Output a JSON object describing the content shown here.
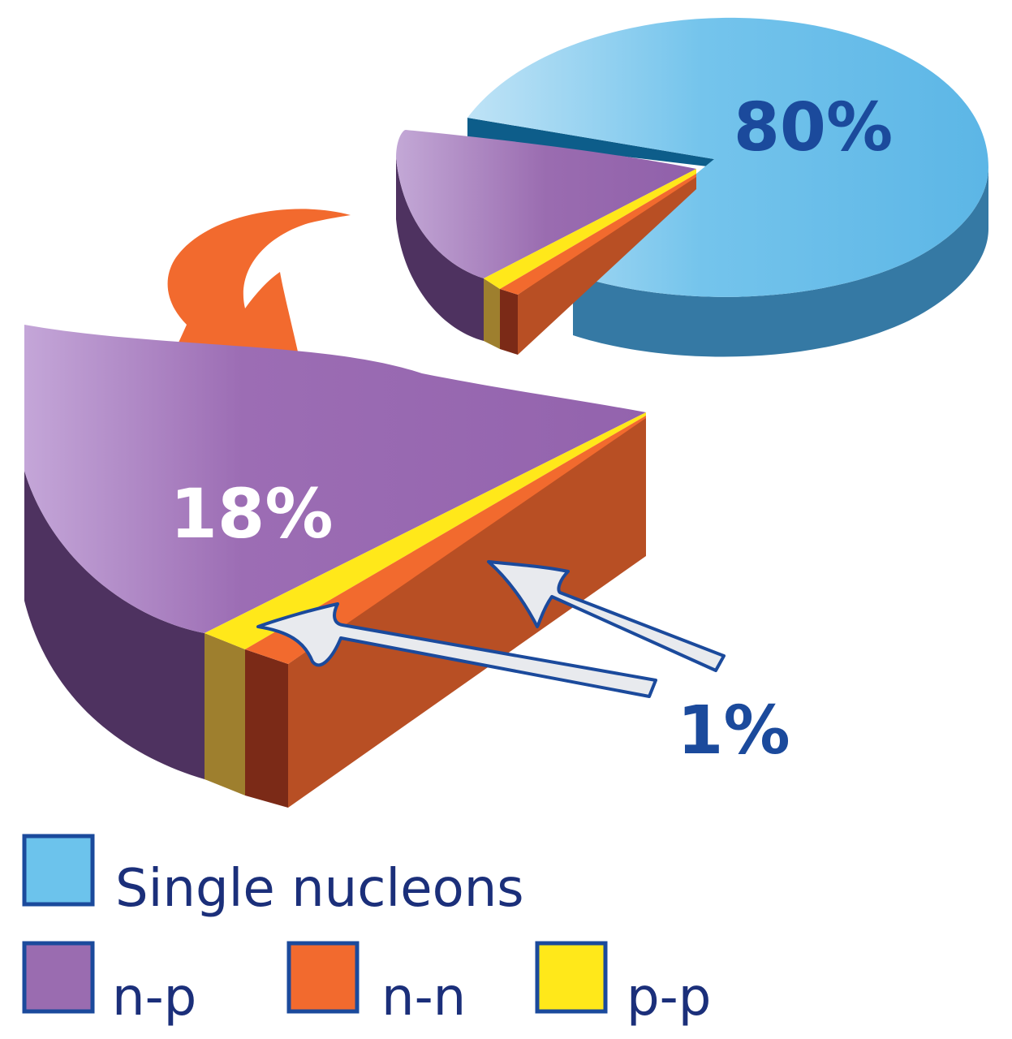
{
  "chart_data": {
    "type": "pie",
    "categories": [
      "Single nucleons",
      "n-p",
      "n-n",
      "p-p"
    ],
    "values": [
      80,
      18,
      1,
      1
    ],
    "unit": "%",
    "exploded_detail": [
      "n-p",
      "n-n",
      "p-p"
    ],
    "labels": {
      "main": "80%",
      "np": "18%",
      "small": "1%"
    },
    "legend": [
      {
        "label": "Single nucleons",
        "color": "#6cc3ec"
      },
      {
        "label": "n-p",
        "color": "#9a6cb0"
      },
      {
        "label": "n-n",
        "color": "#f26a2e"
      },
      {
        "label": "p-p",
        "color": "#ffe81a"
      }
    ],
    "colors": {
      "single_top": "#6cc3ec",
      "single_side": "#3579a4",
      "np_top": "#9866b0",
      "np_side": "#4e3260",
      "nn_top": "#f26a2e",
      "nn_side": "#b84f24",
      "pp_top": "#ffe81a",
      "pp_side": "#9e7f2e",
      "label_blue": "#1b4a9c",
      "label_white": "#ffffff",
      "arrow_orange": "#f26a2e"
    }
  }
}
